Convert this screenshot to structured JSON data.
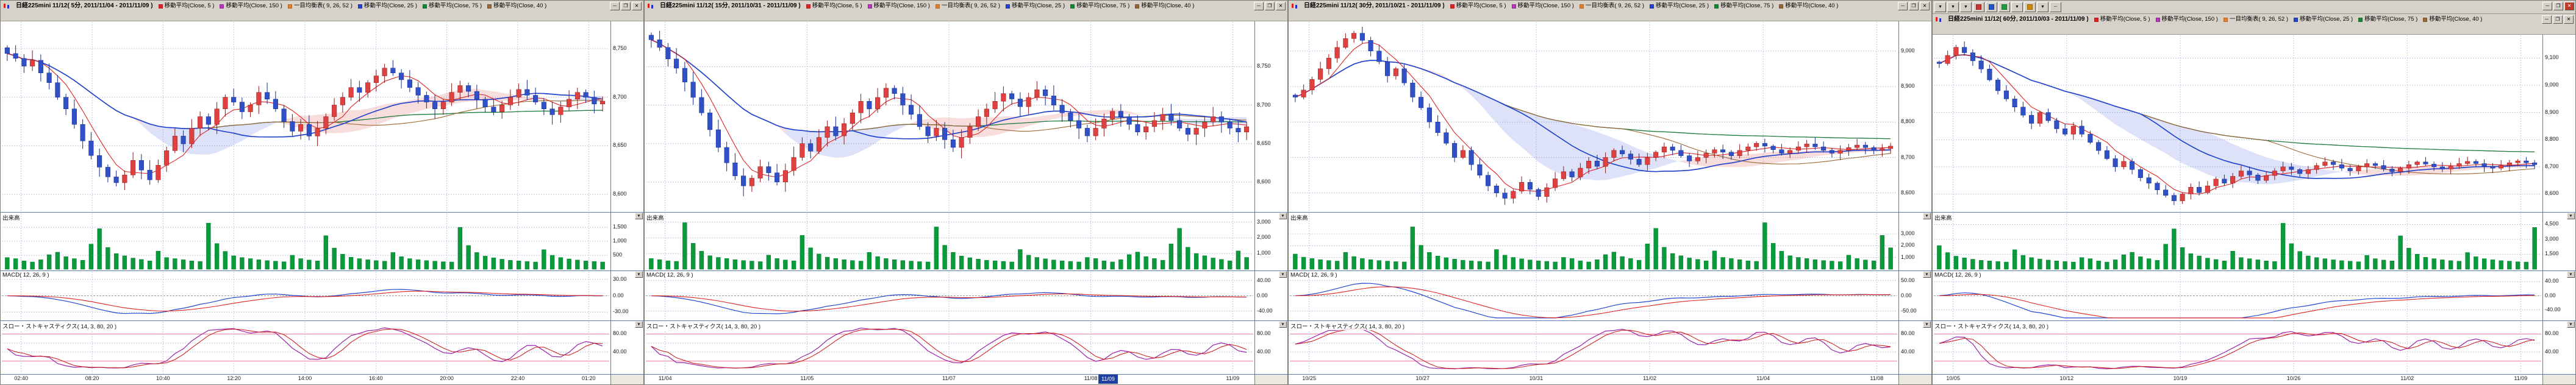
{
  "window_controls": {
    "minimize": "─",
    "restore": "❐",
    "close": "✕",
    "collapse": "▼"
  },
  "panel4_toolbar": {
    "buttons": [
      {
        "glyph": "▼"
      },
      {
        "glyph": "▼"
      },
      {
        "glyph": "▼"
      },
      {
        "swatch": "#cc3333"
      },
      {
        "swatch": "#2255cc"
      },
      {
        "swatch": "#229944"
      },
      {
        "glyph": "▼"
      },
      {
        "swatch": "#cc8800"
      },
      {
        "glyph": "▼"
      },
      {
        "glyph": "─"
      }
    ]
  },
  "colors": {
    "up": "#e04040",
    "up_stroke": "#8a1818",
    "down": "#3050c8",
    "down_stroke": "#142a86",
    "volume": "#0a9a3c",
    "volume_stroke": "#067a2e",
    "macd": "#2244cc",
    "macd_signal": "#dd2222",
    "stoch_k": "#9922aa",
    "stoch_d": "#cc2222",
    "cloud_up": "rgba(228,120,120,0.25)",
    "cloud_down": "rgba(120,140,228,0.25)",
    "ref_line": "#ee7799"
  },
  "chart_data": [
    {
      "type": "candlestick",
      "title": "日経225mini 11/12( 5分, 2011/11/04 - 2011/11/09 )",
      "legend": [
        {
          "label": "移動平均(Close, 5 )",
          "color": "#dd2222"
        },
        {
          "label": "移動平均(Close, 150 )",
          "color": "#bb33bb"
        },
        {
          "label": "一目均衡表( 9, 26, 52 )",
          "color": "#e08030"
        },
        {
          "label": "移動平均(Close, 25 )",
          "color": "#2244cc"
        },
        {
          "label": "移動平均(Close, 75 )",
          "color": "#118833"
        },
        {
          "label": "移動平均(Close, 40 )",
          "color": "#996633"
        }
      ],
      "panes": {
        "volume_label": "出来高",
        "macd_label": "MACD( 12, 26, 9 )",
        "stoch_label": "スロー・ストキャスティクス( 14, 3, 80, 20 )"
      },
      "wick": 8,
      "price_axis": {
        "range": [
          8585,
          8775
        ],
        "ticks": [
          {
            "v": 8750,
            "label": "8,750"
          },
          {
            "v": 8700,
            "label": "8,700"
          },
          {
            "v": 8650,
            "label": "8,650"
          },
          {
            "v": 8600,
            "label": "8,600"
          }
        ]
      },
      "volume_axis": {
        "scale": 1,
        "max": 1850,
        "ticks": [
          {
            "v": 1500,
            "label": "1,500"
          },
          {
            "v": 1000,
            "label": "1,000"
          },
          {
            "v": 500,
            "label": "500"
          }
        ]
      },
      "macd_axis": {
        "range": [
          -42,
          42
        ],
        "ticks": [
          {
            "v": 30,
            "label": "30.00"
          },
          {
            "v": 0,
            "label": "0.00"
          },
          {
            "v": -30,
            "label": "-30.00"
          }
        ]
      },
      "stoch_axis": {
        "ticks": [
          {
            "v": 80,
            "label": "80.00"
          },
          {
            "v": 40,
            "label": "40.00"
          }
        ],
        "ref_lines": [
          80,
          20
        ]
      },
      "time_labels": [
        "02:40",
        "08:20",
        "10:40",
        "12:20",
        "14:00",
        "16:40",
        "20:00",
        "22:40",
        "01:20"
      ],
      "closes": [
        8745,
        8740,
        8732,
        8738,
        8725,
        8715,
        8700,
        8688,
        8672,
        8655,
        8640,
        8628,
        8618,
        8612,
        8620,
        8635,
        8625,
        8615,
        8630,
        8645,
        8660,
        8652,
        8668,
        8680,
        8672,
        8688,
        8700,
        8695,
        8685,
        8692,
        8705,
        8698,
        8688,
        8675,
        8665,
        8672,
        8660,
        8668,
        8680,
        8692,
        8700,
        8710,
        8705,
        8715,
        8722,
        8730,
        8725,
        8718,
        8710,
        8702,
        8695,
        8688,
        8695,
        8705,
        8712,
        8706,
        8698,
        8690,
        8685,
        8692,
        8700,
        8708,
        8702,
        8695,
        8688,
        8682,
        8690,
        8698,
        8705,
        8700,
        8693,
        8696
      ],
      "volumes": [
        420,
        380,
        300,
        260,
        340,
        520,
        610,
        450,
        380,
        320,
        900,
        1450,
        780,
        560,
        480,
        400,
        350,
        300,
        650,
        420,
        380,
        340,
        300,
        280,
        1650,
        920,
        640,
        480,
        420,
        380,
        340,
        310,
        290,
        270,
        500,
        380,
        330,
        300,
        1200,
        760,
        540,
        430,
        380,
        340,
        310,
        290,
        600,
        450,
        380,
        340,
        310,
        290,
        270,
        260,
        1500,
        850,
        600,
        470,
        410,
        360,
        320,
        300,
        280,
        260,
        700,
        500,
        420,
        370,
        330,
        300,
        280,
        260
      ]
    },
    {
      "type": "candlestick",
      "title": "日経225mini 11/12( 15分, 2011/10/31 - 2011/11/09 )",
      "legend": [
        {
          "label": "移動平均(Close, 5 )",
          "color": "#dd2222"
        },
        {
          "label": "移動平均(Close, 150 )",
          "color": "#bb33bb"
        },
        {
          "label": "一目均衡表( 9, 26, 52 )",
          "color": "#e08030"
        },
        {
          "label": "移動平均(Close, 25 )",
          "color": "#2244cc"
        },
        {
          "label": "移動平均(Close, 75 )",
          "color": "#118833"
        },
        {
          "label": "移動平均(Close, 40 )",
          "color": "#996633"
        }
      ],
      "panes": {
        "volume_label": "出来高",
        "macd_label": "MACD( 12, 26, 9 )",
        "stoch_label": "スロー・ストキャスティクス( 14, 3, 80, 20 )"
      },
      "wick": 11,
      "selected_time": "11/09",
      "price_axis": {
        "range": [
          8565,
          8805
        ],
        "ticks": [
          {
            "v": 8750,
            "label": "8,750"
          },
          {
            "v": 8700,
            "label": "8,700"
          },
          {
            "v": 8650,
            "label": "8,650"
          },
          {
            "v": 8600,
            "label": "8,600"
          }
        ]
      },
      "volume_axis": {
        "scale": 1.8,
        "max": 3300,
        "ticks": [
          {
            "v": 3000,
            "label": "3,000"
          },
          {
            "v": 2000,
            "label": "2,000"
          },
          {
            "v": 1000,
            "label": "1,000"
          }
        ]
      },
      "macd_axis": {
        "range": [
          -60,
          60
        ],
        "ticks": [
          {
            "v": 40,
            "label": "40.00"
          },
          {
            "v": 0,
            "label": "0.00"
          },
          {
            "v": -40,
            "label": "-40.00"
          }
        ]
      },
      "stoch_axis": {
        "ticks": [
          {
            "v": 80,
            "label": "80.00"
          },
          {
            "v": 40,
            "label": "40.00"
          }
        ],
        "ref_lines": [
          80,
          20
        ]
      },
      "time_labels": [
        "11/04",
        "11/05",
        "11/07",
        "11/08",
        "11/09"
      ],
      "closes": [
        8785,
        8775,
        8760,
        8748,
        8730,
        8710,
        8690,
        8668,
        8645,
        8625,
        8608,
        8595,
        8605,
        8620,
        8612,
        8600,
        8615,
        8632,
        8650,
        8640,
        8658,
        8672,
        8660,
        8676,
        8690,
        8705,
        8695,
        8710,
        8722,
        8715,
        8700,
        8688,
        8672,
        8660,
        8670,
        8655,
        8645,
        8658,
        8672,
        8685,
        8695,
        8705,
        8715,
        8708,
        8698,
        8710,
        8720,
        8712,
        8700,
        8690,
        8680,
        8670,
        8660,
        8670,
        8682,
        8692,
        8685,
        8675,
        8665,
        8672,
        8680,
        8688,
        8680,
        8670,
        8662,
        8670,
        8678,
        8685,
        8678,
        8670,
        8665,
        8672
      ],
      "volumes": [
        380,
        340,
        300,
        280,
        1650,
        920,
        640,
        480,
        420,
        380,
        340,
        310,
        290,
        270,
        500,
        380,
        330,
        300,
        1200,
        760,
        540,
        430,
        380,
        340,
        310,
        290,
        600,
        450,
        380,
        340,
        310,
        290,
        270,
        260,
        1500,
        850,
        600,
        470,
        410,
        360,
        320,
        300,
        280,
        260,
        700,
        500,
        420,
        370,
        330,
        300,
        280,
        260,
        420,
        380,
        300,
        260,
        340,
        520,
        610,
        450,
        380,
        320,
        900,
        1450,
        780,
        560,
        480,
        400,
        350,
        300,
        650,
        420
      ]
    },
    {
      "type": "candlestick",
      "title": "日経225mini 11/12( 30分, 2011/10/21 - 2011/11/09 )",
      "legend": [
        {
          "label": "移動平均(Close, 5 )",
          "color": "#dd2222"
        },
        {
          "label": "移動平均(Close, 150 )",
          "color": "#bb33bb"
        },
        {
          "label": "一目均衡表( 9, 26, 52 )",
          "color": "#e08030"
        },
        {
          "label": "移動平均(Close, 25 )",
          "color": "#2244cc"
        },
        {
          "label": "移動平均(Close, 75 )",
          "color": "#118833"
        },
        {
          "label": "移動平均(Close, 40 )",
          "color": "#996633"
        }
      ],
      "panes": {
        "volume_label": "出来高",
        "macd_label": "MACD( 12, 26, 9 )",
        "stoch_label": "スロー・ストキャスティクス( 14, 3, 80, 20 )"
      },
      "wick": 15,
      "price_axis": {
        "range": [
          8555,
          9075
        ],
        "ticks": [
          {
            "v": 9000,
            "label": "9,000"
          },
          {
            "v": 8900,
            "label": "8,900"
          },
          {
            "v": 8800,
            "label": "8,800"
          },
          {
            "v": 8700,
            "label": "8,700"
          },
          {
            "v": 8600,
            "label": "8,600"
          }
        ]
      },
      "volume_axis": {
        "scale": 2.4,
        "max": 4400,
        "ticks": [
          {
            "v": 3000,
            "label": "3,000"
          },
          {
            "v": 2000,
            "label": "2,000"
          },
          {
            "v": 1000,
            "label": "1,000"
          }
        ]
      },
      "macd_axis": {
        "range": [
          -75,
          75
        ],
        "ticks": [
          {
            "v": 50,
            "label": "50.00"
          },
          {
            "v": 0,
            "label": "0.00"
          },
          {
            "v": -50,
            "label": "-50.00"
          }
        ]
      },
      "stoch_axis": {
        "ticks": [
          {
            "v": 80,
            "label": "80.00"
          },
          {
            "v": 40,
            "label": "40.00"
          }
        ],
        "ref_lines": [
          80,
          20
        ]
      },
      "time_labels": [
        "10/25",
        "10/27",
        "10/31",
        "11/02",
        "11/04",
        "11/08"
      ],
      "closes": [
        8870,
        8890,
        8920,
        8950,
        8980,
        9010,
        9035,
        9050,
        9030,
        9000,
        8970,
        8930,
        8950,
        8910,
        8870,
        8840,
        8800,
        8770,
        8740,
        8700,
        8720,
        8680,
        8650,
        8620,
        8600,
        8585,
        8605,
        8630,
        8610,
        8590,
        8615,
        8640,
        8660,
        8645,
        8670,
        8690,
        8675,
        8700,
        8720,
        8710,
        8695,
        8680,
        8700,
        8715,
        8730,
        8720,
        8705,
        8690,
        8700,
        8712,
        8722,
        8715,
        8705,
        8720,
        8730,
        8740,
        8732,
        8722,
        8712,
        8720,
        8730,
        8738,
        8730,
        8720,
        8712,
        8720,
        8728,
        8735,
        8728,
        8720,
        8725,
        8732
      ],
      "volumes": [
        540,
        430,
        380,
        340,
        310,
        290,
        600,
        450,
        380,
        340,
        310,
        290,
        270,
        260,
        1500,
        850,
        600,
        470,
        410,
        360,
        320,
        300,
        280,
        260,
        700,
        500,
        420,
        370,
        330,
        300,
        280,
        260,
        420,
        380,
        300,
        260,
        340,
        520,
        610,
        450,
        380,
        320,
        900,
        1450,
        780,
        560,
        480,
        400,
        350,
        300,
        650,
        420,
        380,
        340,
        300,
        280,
        1650,
        920,
        640,
        480,
        420,
        380,
        340,
        310,
        290,
        270,
        500,
        380,
        330,
        300,
        1200,
        760
      ]
    },
    {
      "type": "candlestick",
      "title": "日経225mini 11/12( 60分, 2011/10/03 - 2011/11/09 )",
      "legend": [
        {
          "label": "移動平均(Close, 5 )",
          "color": "#dd2222"
        },
        {
          "label": "移動平均(Close, 150 )",
          "color": "#bb33bb"
        },
        {
          "label": "一目均衡表( 9, 26, 52 )",
          "color": "#e08030"
        },
        {
          "label": "移動平均(Close, 25 )",
          "color": "#2244cc"
        },
        {
          "label": "移動平均(Close, 75 )",
          "color": "#118833"
        },
        {
          "label": "移動平均(Close, 40 )",
          "color": "#996633"
        }
      ],
      "panes": {
        "volume_label": "出来高",
        "macd_label": "MACD( 12, 26, 9 )",
        "stoch_label": "スロー・ストキャスティクス( 14, 3, 80, 20 )"
      },
      "wick": 17,
      "price_axis": {
        "range": [
          8545,
          9175
        ],
        "ticks": [
          {
            "v": 9100,
            "label": "9,100"
          },
          {
            "v": 9000,
            "label": "9,000"
          },
          {
            "v": 8900,
            "label": "8,900"
          },
          {
            "v": 8800,
            "label": "8,800"
          },
          {
            "v": 8700,
            "label": "8,700"
          },
          {
            "v": 8600,
            "label": "8,600"
          }
        ]
      },
      "volume_axis": {
        "scale": 2.8,
        "max": 5200,
        "ticks": [
          {
            "v": 4500,
            "label": "4,500"
          },
          {
            "v": 3000,
            "label": "3,000"
          },
          {
            "v": 1500,
            "label": "1,500"
          }
        ]
      },
      "macd_axis": {
        "range": [
          -65,
          65
        ],
        "ticks": [
          {
            "v": 40,
            "label": "40.00"
          },
          {
            "v": 0,
            "label": "0.00"
          },
          {
            "v": -40,
            "label": "-40.00"
          }
        ]
      },
      "stoch_axis": {
        "ticks": [
          {
            "v": 80,
            "label": "80.00"
          },
          {
            "v": 40,
            "label": "40.00"
          }
        ],
        "ref_lines": [
          80,
          20
        ]
      },
      "time_labels": [
        "10/05",
        "10/12",
        "10/19",
        "10/26",
        "11/02",
        "11/09"
      ],
      "closes": [
        9080,
        9110,
        9140,
        9120,
        9090,
        9060,
        9020,
        8980,
        8950,
        8920,
        8890,
        8860,
        8900,
        8870,
        8840,
        8820,
        8850,
        8820,
        8790,
        8760,
        8730,
        8700,
        8720,
        8690,
        8660,
        8640,
        8615,
        8595,
        8575,
        8600,
        8625,
        8605,
        8630,
        8655,
        8640,
        8665,
        8685,
        8670,
        8650,
        8668,
        8685,
        8700,
        8690,
        8675,
        8690,
        8705,
        8718,
        8708,
        8695,
        8685,
        8700,
        8712,
        8705,
        8692,
        8682,
        8695,
        8708,
        8718,
        8710,
        8700,
        8692,
        8702,
        8712,
        8720,
        8712,
        8702,
        8695,
        8705,
        8715,
        8722,
        8715,
        8708
      ],
      "volumes": [
        850,
        600,
        470,
        410,
        360,
        320,
        300,
        280,
        260,
        700,
        500,
        420,
        370,
        330,
        300,
        280,
        260,
        420,
        380,
        300,
        260,
        340,
        520,
        610,
        450,
        380,
        320,
        900,
        1450,
        780,
        560,
        480,
        400,
        350,
        300,
        650,
        420,
        380,
        340,
        300,
        280,
        1650,
        920,
        640,
        480,
        420,
        380,
        340,
        310,
        290,
        270,
        500,
        380,
        330,
        300,
        1200,
        760,
        540,
        430,
        380,
        340,
        310,
        290,
        600,
        450,
        380,
        340,
        310,
        290,
        270,
        260,
        1500
      ]
    }
  ]
}
